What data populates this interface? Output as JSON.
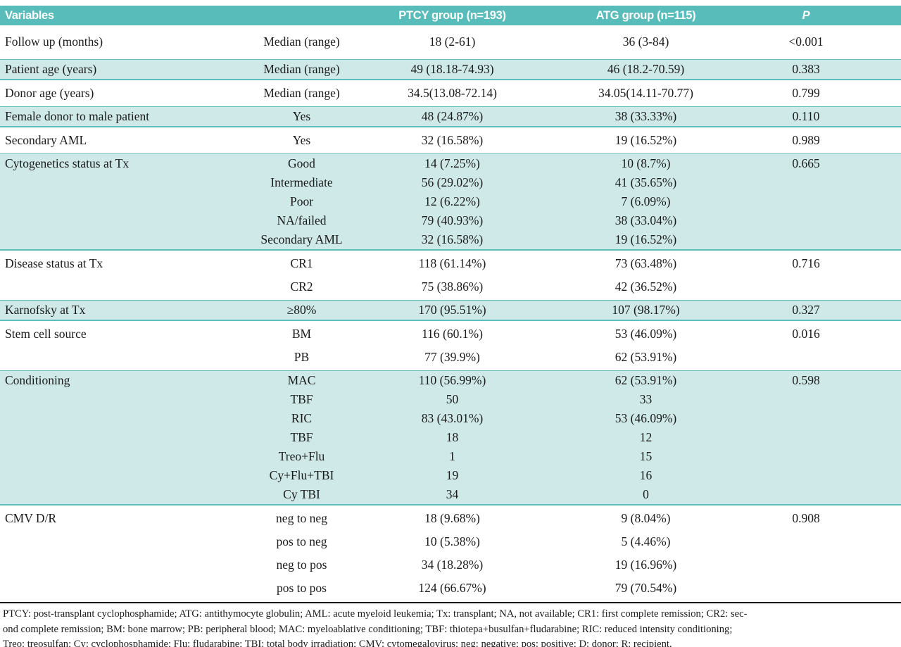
{
  "theme": {
    "header_bg": "#58bcba",
    "header_text": "#ffffff",
    "row_teal_bg": "#cfe9e8",
    "row_divider_teal": "#5dbfbd",
    "footer_divider": "#1a1a1a",
    "body_text": "#1b1b1b"
  },
  "table": {
    "headers": {
      "variables": "Variables",
      "ptcy": "PTCY group (n=193)",
      "atg": "ATG group (n=115)",
      "p": "P"
    },
    "rows": [
      {
        "variable": "Follow up (months)",
        "shade": "white",
        "p": "<0.001",
        "lines": [
          {
            "label": "Median (range)",
            "ptcy": "18 (2-61)",
            "atg": "36 (3-84)"
          }
        ]
      },
      {
        "variable": "Patient age (years)",
        "shade": "teal",
        "p": "0.383",
        "lines": [
          {
            "label": "Median (range)",
            "ptcy": "49 (18.18-74.93)",
            "atg": "46 (18.2-70.59)"
          }
        ]
      },
      {
        "variable": "Donor age (years)",
        "shade": "white",
        "p": "0.799",
        "lines": [
          {
            "label": "Median (range)",
            "ptcy": "34.5(13.08-72.14)",
            "atg": "34.05(14.11-70.77)"
          }
        ]
      },
      {
        "variable": "Female donor to male patient",
        "shade": "teal",
        "p": "0.110",
        "lines": [
          {
            "label": "Yes",
            "ptcy": "48 (24.87%)",
            "atg": "38 (33.33%)"
          }
        ]
      },
      {
        "variable": "Secondary AML",
        "shade": "white",
        "p": "0.989",
        "lines": [
          {
            "label": "Yes",
            "ptcy": "32 (16.58%)",
            "atg": "19 (16.52%)"
          }
        ]
      },
      {
        "variable": "Cytogenetics status at Tx",
        "shade": "teal",
        "p": "0.665",
        "lines": [
          {
            "label": "Good",
            "ptcy": "14 (7.25%)",
            "atg": "10 (8.7%)"
          },
          {
            "label": "Intermediate",
            "ptcy": "56 (29.02%)",
            "atg": "41 (35.65%)"
          },
          {
            "label": "Poor",
            "ptcy": "12 (6.22%)",
            "atg": "7 (6.09%)"
          },
          {
            "label": "NA/failed",
            "ptcy": "79 (40.93%)",
            "atg": "38 (33.04%)"
          },
          {
            "label": "Secondary AML",
            "ptcy": "32 (16.58%)",
            "atg": "19 (16.52%)"
          }
        ]
      },
      {
        "variable": "Disease status at Tx",
        "shade": "white",
        "p": "0.716",
        "lines": [
          {
            "label": "CR1",
            "ptcy": "118 (61.14%)",
            "atg": "73 (63.48%)"
          },
          {
            "label": "CR2",
            "ptcy": "75 (38.86%)",
            "atg": "42 (36.52%)"
          }
        ]
      },
      {
        "variable": "Karnofsky at Tx",
        "shade": "teal",
        "p": "0.327",
        "lines": [
          {
            "label": "≥80%",
            "ptcy": "170 (95.51%)",
            "atg": "107 (98.17%)"
          }
        ]
      },
      {
        "variable": "Stem cell source",
        "shade": "white",
        "p": "0.016",
        "lines": [
          {
            "label": "BM",
            "ptcy": "116 (60.1%)",
            "atg": "53 (46.09%)"
          },
          {
            "label": "PB",
            "ptcy": "77 (39.9%)",
            "atg": "62 (53.91%)"
          }
        ]
      },
      {
        "variable": "Conditioning",
        "shade": "teal",
        "p": "0.598",
        "lines": [
          {
            "label": "MAC",
            "ptcy": "110 (56.99%)",
            "atg": "62 (53.91%)"
          },
          {
            "label": "TBF",
            "ptcy": "50",
            "atg": "33"
          },
          {
            "label": "RIC",
            "ptcy": "83 (43.01%)",
            "atg": "53 (46.09%)"
          },
          {
            "label": "TBF",
            "ptcy": "18",
            "atg": "12"
          },
          {
            "label": "Treo+Flu",
            "ptcy": "1",
            "atg": "15"
          },
          {
            "label": "Cy+Flu+TBI",
            "ptcy": "19",
            "atg": "16"
          },
          {
            "label": "Cy TBI",
            "ptcy": "34",
            "atg": "0"
          }
        ]
      },
      {
        "variable": "CMV D/R",
        "shade": "white",
        "p": "0.908",
        "lines": [
          {
            "label": "neg to neg",
            "ptcy": "18 (9.68%)",
            "atg": "9 (8.04%)"
          },
          {
            "label": "pos to neg",
            "ptcy": "10 (5.38%)",
            "atg": "5 (4.46%)"
          },
          {
            "label": "neg to pos",
            "ptcy": "34 (18.28%)",
            "atg": "19 (16.96%)"
          },
          {
            "label": "pos to pos",
            "ptcy": "124 (66.67%)",
            "atg": "79 (70.54%)"
          }
        ]
      }
    ]
  },
  "footer": {
    "lines": [
      "PTCY: post-transplant cyclophosphamide; ATG: antithymocyte globulin; AML: acute myeloid leukemia; Tx: transplant; NA, not available; CR1: first complete remission; CR2: sec-",
      "ond complete remission; BM: bone marrow; PB: peripheral blood; MAC: myeloablative conditioning; TBF: thiotepa+busulfan+fludarabine; RIC: reduced intensity conditioning;",
      "Treo: treosulfan; Cy: cyclophosphamide; Flu: fludarabine; TBI: total body irradiation; CMV: cytomegalovirus; neg: negative; pos: positive; D: donor; R: recipient."
    ]
  }
}
